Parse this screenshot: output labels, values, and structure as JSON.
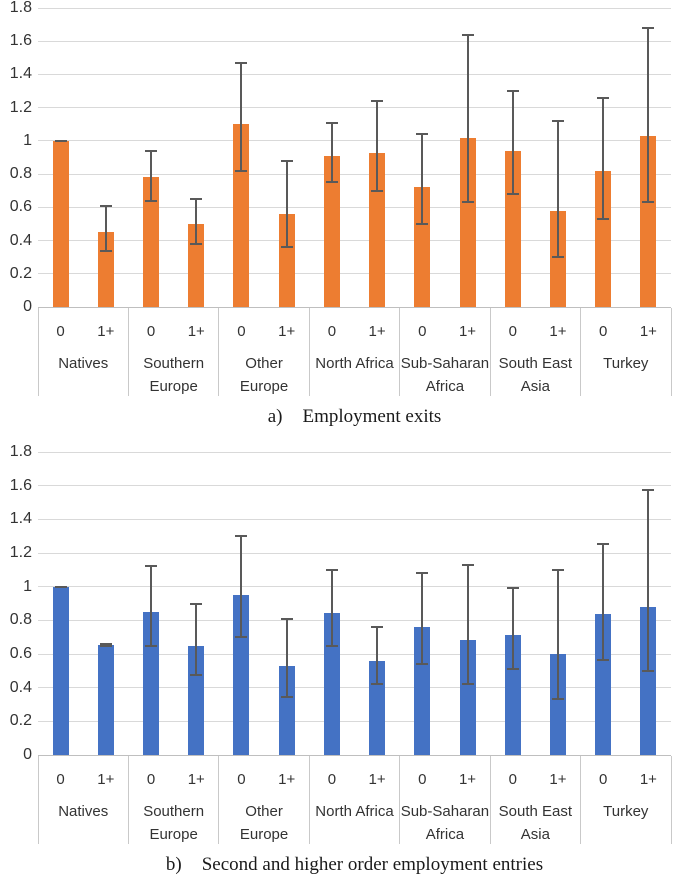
{
  "chart_data": [
    {
      "type": "bar",
      "panel": "a",
      "caption_prefix": "a)",
      "caption": "Employment exits",
      "bar_color": "#ED7D31",
      "error_bar_color": "#595959",
      "ylim": [
        0,
        1.8
      ],
      "ytick_labels": [
        "0",
        "0.2",
        "0.4",
        "0.6",
        "0.8",
        "1",
        "1.2",
        "1.4",
        "1.6",
        "1.8"
      ],
      "grid": true,
      "legend": "none",
      "sub_categories": [
        "0",
        "1+"
      ],
      "groups": [
        {
          "label": "Natives",
          "label_lines": [
            "Natives"
          ],
          "bars": [
            {
              "sub": "0",
              "value": 1.0,
              "ci_low": 1.0,
              "ci_high": 1.0
            },
            {
              "sub": "1+",
              "value": 0.45,
              "ci_low": 0.34,
              "ci_high": 0.61
            }
          ]
        },
        {
          "label": "Southern Europe",
          "label_lines": [
            "Southern",
            "Europe"
          ],
          "bars": [
            {
              "sub": "0",
              "value": 0.78,
              "ci_low": 0.64,
              "ci_high": 0.94
            },
            {
              "sub": "1+",
              "value": 0.5,
              "ci_low": 0.38,
              "ci_high": 0.65
            }
          ]
        },
        {
          "label": "Other Europe",
          "label_lines": [
            "Other",
            "Europe"
          ],
          "bars": [
            {
              "sub": "0",
              "value": 1.1,
              "ci_low": 0.82,
              "ci_high": 1.47
            },
            {
              "sub": "1+",
              "value": 0.56,
              "ci_low": 0.36,
              "ci_high": 0.88
            }
          ]
        },
        {
          "label": "North Africa",
          "label_lines": [
            "North Africa"
          ],
          "bars": [
            {
              "sub": "0",
              "value": 0.91,
              "ci_low": 0.75,
              "ci_high": 1.11
            },
            {
              "sub": "1+",
              "value": 0.93,
              "ci_low": 0.7,
              "ci_high": 1.24
            }
          ]
        },
        {
          "label": "Sub-Saharan Africa",
          "label_lines": [
            "Sub-Saharan",
            "Africa"
          ],
          "bars": [
            {
              "sub": "0",
              "value": 0.72,
              "ci_low": 0.5,
              "ci_high": 1.04
            },
            {
              "sub": "1+",
              "value": 1.02,
              "ci_low": 0.63,
              "ci_high": 1.64
            }
          ]
        },
        {
          "label": "South East Asia",
          "label_lines": [
            "South East",
            "Asia"
          ],
          "bars": [
            {
              "sub": "0",
              "value": 0.94,
              "ci_low": 0.68,
              "ci_high": 1.3
            },
            {
              "sub": "1+",
              "value": 0.58,
              "ci_low": 0.3,
              "ci_high": 1.12
            }
          ]
        },
        {
          "label": "Turkey",
          "label_lines": [
            "Turkey"
          ],
          "bars": [
            {
              "sub": "0",
              "value": 0.82,
              "ci_low": 0.53,
              "ci_high": 1.26
            },
            {
              "sub": "1+",
              "value": 1.03,
              "ci_low": 0.63,
              "ci_high": 1.68
            }
          ]
        }
      ]
    },
    {
      "type": "bar",
      "panel": "b",
      "caption_prefix": "b)",
      "caption": "Second and higher order employment entries",
      "bar_color": "#4472C4",
      "error_bar_color": "#595959",
      "ylim": [
        0,
        1.8
      ],
      "ytick_labels": [
        "0",
        "0.2",
        "0.4",
        "0.6",
        "0.8",
        "1",
        "1.2",
        "1.4",
        "1.6",
        "1.8"
      ],
      "grid": true,
      "legend": "none",
      "sub_categories": [
        "0",
        "1+"
      ],
      "groups": [
        {
          "label": "Natives",
          "label_lines": [
            "Natives"
          ],
          "bars": [
            {
              "sub": "0",
              "value": 1.0,
              "ci_low": 1.0,
              "ci_high": 1.0
            },
            {
              "sub": "1+",
              "value": 0.655,
              "ci_low": 0.65,
              "ci_high": 0.66
            }
          ]
        },
        {
          "label": "Southern Europe",
          "label_lines": [
            "Southern",
            "Europe"
          ],
          "bars": [
            {
              "sub": "0",
              "value": 0.85,
              "ci_low": 0.645,
              "ci_high": 1.12
            },
            {
              "sub": "1+",
              "value": 0.65,
              "ci_low": 0.475,
              "ci_high": 0.895
            }
          ]
        },
        {
          "label": "Other Europe",
          "label_lines": [
            "Other",
            "Europe"
          ],
          "bars": [
            {
              "sub": "0",
              "value": 0.95,
              "ci_low": 0.7,
              "ci_high": 1.3
            },
            {
              "sub": "1+",
              "value": 0.53,
              "ci_low": 0.345,
              "ci_high": 0.81
            }
          ]
        },
        {
          "label": "North Africa",
          "label_lines": [
            "North Africa"
          ],
          "bars": [
            {
              "sub": "0",
              "value": 0.845,
              "ci_low": 0.65,
              "ci_high": 1.1
            },
            {
              "sub": "1+",
              "value": 0.56,
              "ci_low": 0.42,
              "ci_high": 0.76
            }
          ]
        },
        {
          "label": "Sub-Saharan Africa",
          "label_lines": [
            "Sub-Saharan",
            "Africa"
          ],
          "bars": [
            {
              "sub": "0",
              "value": 0.76,
              "ci_low": 0.54,
              "ci_high": 1.08
            },
            {
              "sub": "1+",
              "value": 0.685,
              "ci_low": 0.42,
              "ci_high": 1.13
            }
          ]
        },
        {
          "label": "South East Asia",
          "label_lines": [
            "South East",
            "Asia"
          ],
          "bars": [
            {
              "sub": "0",
              "value": 0.71,
              "ci_low": 0.51,
              "ci_high": 0.99
            },
            {
              "sub": "1+",
              "value": 0.6,
              "ci_low": 0.33,
              "ci_high": 1.1
            }
          ]
        },
        {
          "label": "Turkey",
          "label_lines": [
            "Turkey"
          ],
          "bars": [
            {
              "sub": "0",
              "value": 0.835,
              "ci_low": 0.565,
              "ci_high": 1.255
            },
            {
              "sub": "1+",
              "value": 0.88,
              "ci_low": 0.5,
              "ci_high": 1.575
            }
          ]
        }
      ]
    }
  ]
}
